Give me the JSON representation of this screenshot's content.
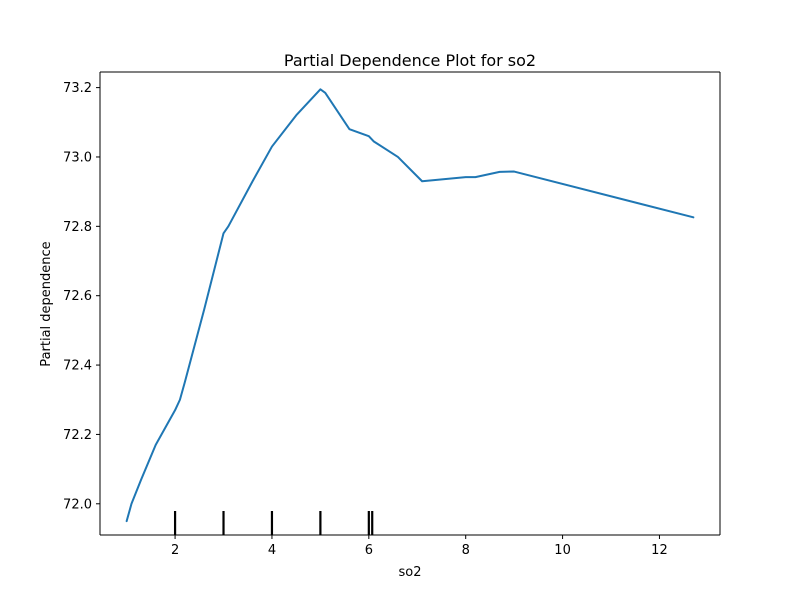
{
  "chart_data": {
    "type": "line",
    "title": "Partial Dependence Plot for so2",
    "xlabel": "so2",
    "ylabel": "Partial dependence",
    "xlim": [
      0.45,
      13.25
    ],
    "ylim": [
      71.91,
      73.245
    ],
    "x_ticks": [
      2,
      4,
      6,
      8,
      10,
      12
    ],
    "y_ticks": [
      72.0,
      72.2,
      72.4,
      72.6,
      72.8,
      73.0,
      73.2
    ],
    "grid": false,
    "line_color": "#1f77b4",
    "rug_color": "#000000",
    "rug_values": [
      2.0,
      3.0,
      4.0,
      5.0,
      6.0,
      6.07
    ],
    "series": [
      {
        "x": [
          1.0,
          1.1,
          1.3,
          1.6,
          2.0,
          2.1,
          2.2,
          2.6,
          3.0,
          3.1,
          3.6,
          4.0,
          4.5,
          5.0,
          5.1,
          5.6,
          6.0,
          6.1,
          6.6,
          7.1,
          8.0,
          8.2,
          8.7,
          9.0,
          12.7
        ],
        "y": [
          71.95,
          72.0,
          72.07,
          72.17,
          72.27,
          72.3,
          72.35,
          72.56,
          72.78,
          72.8,
          72.93,
          73.03,
          73.12,
          73.195,
          73.185,
          73.08,
          73.06,
          73.045,
          73.0,
          72.93,
          72.942,
          72.942,
          72.957,
          72.958,
          72.826
        ]
      }
    ]
  }
}
